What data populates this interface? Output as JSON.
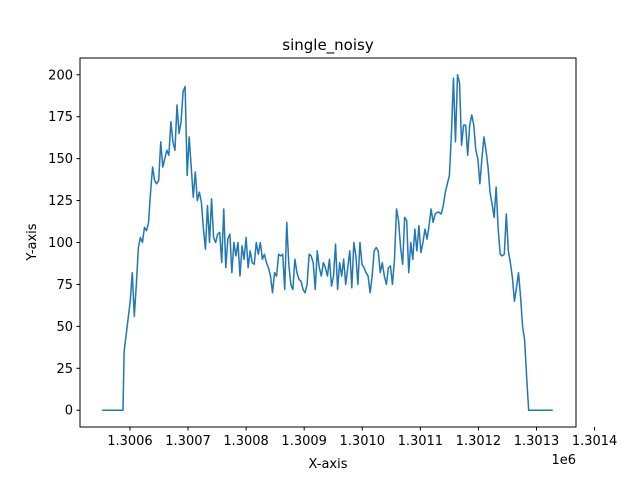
{
  "chart_data": {
    "type": "line",
    "title": "single_noisy",
    "x_label": "X-axis",
    "y_label": "Y-axis",
    "x_offset_label": "1e6",
    "color": "#1f77b4",
    "x": [
      1300552,
      1300588,
      1300590,
      1300593.5,
      1300597,
      1300600.5,
      1300604,
      1300607.5,
      1300611,
      1300614.5,
      1300618,
      1300621.5,
      1300625,
      1300628.5,
      1300632,
      1300635.5,
      1300639,
      1300642.5,
      1300646,
      1300649.5,
      1300653,
      1300656.5,
      1300660,
      1300663.5,
      1300667,
      1300670.5,
      1300674,
      1300677.5,
      1300681,
      1300684.5,
      1300688,
      1300691.5,
      1300695,
      1300698.5,
      1300702,
      1300705.5,
      1300709,
      1300712.5,
      1300716,
      1300719.5,
      1300723,
      1300726.5,
      1300730,
      1300733.5,
      1300737,
      1300740.5,
      1300744,
      1300747.5,
      1300751,
      1300754.5,
      1300758,
      1300761.5,
      1300765,
      1300768.5,
      1300772,
      1300775.5,
      1300779,
      1300782.5,
      1300786,
      1300789.5,
      1300793,
      1300796.5,
      1300800,
      1300803.5,
      1300807,
      1300810.5,
      1300814,
      1300817.5,
      1300821,
      1300824.5,
      1300828,
      1300831.5,
      1300835,
      1300838.5,
      1300842,
      1300845.5,
      1300849,
      1300852.5,
      1300856,
      1300859.5,
      1300863,
      1300866.5,
      1300870,
      1300873.5,
      1300877,
      1300880.5,
      1300884,
      1300887.5,
      1300891,
      1300894.5,
      1300898,
      1300901.5,
      1300905,
      1300908.5,
      1300912,
      1300915.5,
      1300919,
      1300922.5,
      1300926,
      1300929.5,
      1300933,
      1300936.5,
      1300940,
      1300943.5,
      1300947,
      1300950.5,
      1300954,
      1300957.5,
      1300961,
      1300964.5,
      1300968,
      1300971.5,
      1300975,
      1300978.5,
      1300982,
      1300985.5,
      1300989,
      1300992.5,
      1300996,
      1300999.5,
      1301003,
      1301006.5,
      1301010,
      1301013.5,
      1301017,
      1301020.5,
      1301024,
      1301027.5,
      1301031,
      1301034.5,
      1301038,
      1301041.5,
      1301045,
      1301048.5,
      1301052,
      1301055.5,
      1301059,
      1301062.5,
      1301066,
      1301069.5,
      1301073,
      1301076.5,
      1301080,
      1301083.5,
      1301087,
      1301090.5,
      1301094,
      1301097.5,
      1301101,
      1301104.5,
      1301108,
      1301111.5,
      1301115,
      1301118.5,
      1301122,
      1301125.5,
      1301129,
      1301132.5,
      1301136,
      1301139.5,
      1301143,
      1301146.5,
      1301150,
      1301153.5,
      1301157,
      1301160.5,
      1301164,
      1301167.5,
      1301171,
      1301174.5,
      1301178,
      1301181.5,
      1301185,
      1301188.5,
      1301192,
      1301195.5,
      1301199,
      1301202.5,
      1301206,
      1301209.5,
      1301213,
      1301216.5,
      1301220,
      1301223.5,
      1301227,
      1301230.5,
      1301234,
      1301237.5,
      1301241,
      1301244.5,
      1301248,
      1301251.5,
      1301255,
      1301258.5,
      1301262,
      1301265.5,
      1301269,
      1301272.5,
      1301276,
      1301279.5,
      1301283,
      1301286.5,
      1301328
    ],
    "values": [
      0,
      0,
      35,
      45,
      55,
      65,
      82,
      56,
      75,
      97,
      103,
      100,
      109,
      107,
      112,
      130,
      145,
      137,
      135,
      137,
      160,
      145,
      150,
      155,
      152,
      172,
      160,
      155,
      182,
      165,
      172,
      190,
      193,
      140,
      163,
      145,
      127,
      142,
      125,
      130,
      124,
      108,
      96,
      122,
      100,
      126,
      103,
      100,
      105,
      106,
      88,
      120,
      85,
      102,
      105,
      82,
      100,
      92,
      100,
      80,
      98,
      90,
      103,
      85,
      95,
      88,
      87,
      100,
      93,
      100,
      90,
      93,
      88,
      85,
      80,
      70,
      82,
      80,
      93,
      92,
      93,
      72,
      112,
      87,
      75,
      72,
      90,
      82,
      78,
      77,
      72,
      70,
      75,
      93,
      92,
      88,
      72,
      95,
      85,
      80,
      88,
      85,
      80,
      90,
      74,
      80,
      99,
      72,
      88,
      80,
      90,
      75,
      85,
      95,
      73,
      100,
      92,
      75,
      100,
      87,
      85,
      82,
      80,
      70,
      80,
      95,
      97,
      95,
      82,
      88,
      80,
      75,
      85,
      86,
      75,
      90,
      120,
      113,
      97,
      87,
      115,
      113,
      82,
      100,
      90,
      108,
      95,
      110,
      94,
      100,
      108,
      102,
      110,
      120,
      112,
      117,
      118,
      118,
      117,
      122,
      130,
      135,
      140,
      165,
      198,
      160,
      200,
      195,
      158,
      170,
      170,
      152,
      170,
      176,
      170,
      155,
      150,
      135,
      150,
      163,
      155,
      145,
      130,
      123,
      115,
      133,
      108,
      93,
      92,
      93,
      117,
      95,
      88,
      79,
      65,
      73,
      82,
      68,
      50,
      42,
      20,
      0,
      0
    ],
    "xlim": [
      1300514,
      1301368
    ],
    "ylim": [
      -10,
      210
    ],
    "xticks": [
      {
        "value": 1300600,
        "label": "1.3006"
      },
      {
        "value": 1300700,
        "label": "1.3007"
      },
      {
        "value": 1300800,
        "label": "1.3008"
      },
      {
        "value": 1300900,
        "label": "1.3009"
      },
      {
        "value": 1301000,
        "label": "1.3010"
      },
      {
        "value": 1301100,
        "label": "1.3011"
      },
      {
        "value": 1301200,
        "label": "1.3012"
      },
      {
        "value": 1301300,
        "label": "1.3013"
      },
      {
        "value": 1301400,
        "label": "1.3014"
      }
    ],
    "yticks": [
      0,
      25,
      50,
      75,
      100,
      125,
      150,
      175,
      200
    ],
    "grid": false
  }
}
